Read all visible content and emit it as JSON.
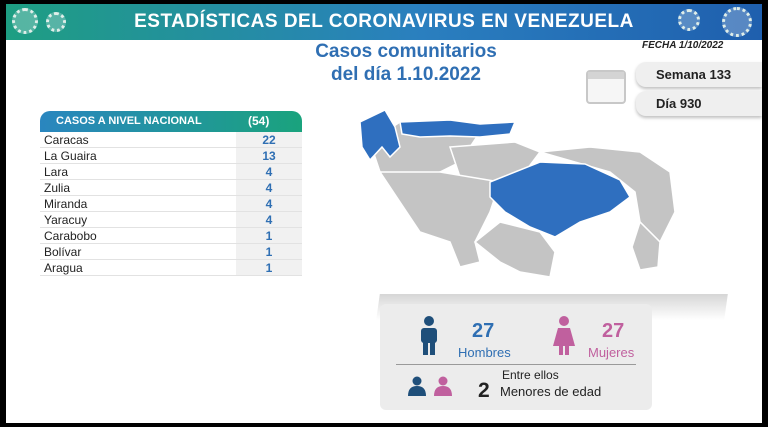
{
  "banner": {
    "title": "ESTADÍSTICAS DEL CORONAVIRUS EN VENEZUELA"
  },
  "header": {
    "subtitle_line1": "Casos comunitarios",
    "subtitle_line2": "del día 1.10.2022",
    "fecha": "FECHA 1/10/2022",
    "semana": "Semana 133",
    "dia": "Día 930"
  },
  "table": {
    "title": "CASOS A NIVEL NACIONAL",
    "total": "(54)",
    "rows": [
      {
        "name": "Caracas",
        "value": "22"
      },
      {
        "name": "La Guaira",
        "value": "13"
      },
      {
        "name": "Lara",
        "value": "4"
      },
      {
        "name": "Zulia",
        "value": "4"
      },
      {
        "name": "Miranda",
        "value": "4"
      },
      {
        "name": "Yaracuy",
        "value": "4"
      },
      {
        "name": "Carabobo",
        "value": "1"
      },
      {
        "name": "Bolívar",
        "value": "1"
      },
      {
        "name": "Aragua",
        "value": "1"
      }
    ]
  },
  "stats": {
    "hombres_count": "27",
    "hombres_label": "Hombres",
    "mujeres_count": "27",
    "mujeres_label": "Mujeres",
    "entre_ellos": "Entre ellos",
    "menores_count": "2",
    "menores_label": "Menores de edad"
  },
  "colors": {
    "highlight_state": "#2f6fbf",
    "other_state": "#c4c4c4",
    "male": "#1f4f7a",
    "female": "#c0609e",
    "accent": "#2f6fb3"
  }
}
